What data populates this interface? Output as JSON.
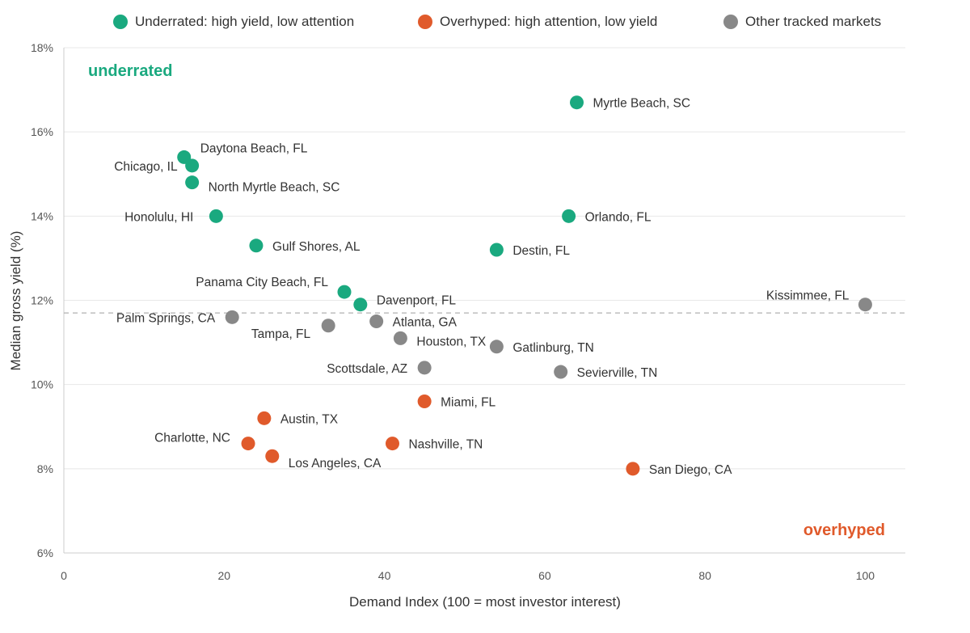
{
  "legend": {
    "underrated": "Underrated: high yield, low attention",
    "overhyped": "Overhyped: high attention, low yield",
    "other": "Other tracked markets"
  },
  "colors": {
    "underrated": "#1aa97f",
    "overhyped": "#e05a2b",
    "other": "#888888",
    "threshold": "#b0b0b0"
  },
  "chart_data": {
    "type": "scatter",
    "xlabel": "Demand Index (100 = most investor interest)",
    "ylabel": "Median gross yield (%)",
    "xlim": [
      0,
      105
    ],
    "ylim": [
      6,
      18
    ],
    "xticks": [
      0,
      20,
      40,
      60,
      80,
      100
    ],
    "yticks": [
      6,
      8,
      10,
      12,
      14,
      16,
      18
    ],
    "ytick_labels": [
      "6%",
      "8%",
      "10%",
      "12%",
      "14%",
      "16%",
      "18%"
    ],
    "grid": "horizontal",
    "threshold_y": 11.7,
    "quadrant_labels": {
      "top_left": "underrated",
      "bottom_right": "overhyped"
    },
    "series": [
      {
        "name": "Underrated: high yield, low attention",
        "key": "underrated",
        "points": [
          {
            "label": "Myrtle Beach, SC",
            "x": 64,
            "y": 16.7
          },
          {
            "label": "Daytona Beach, FL",
            "x": 15,
            "y": 15.4
          },
          {
            "label": "Chicago, IL",
            "x": 16,
            "y": 15.2
          },
          {
            "label": "North Myrtle Beach, SC",
            "x": 16,
            "y": 14.8
          },
          {
            "label": "Honolulu, HI",
            "x": 19,
            "y": 14.0
          },
          {
            "label": "Orlando, FL",
            "x": 63,
            "y": 14.0
          },
          {
            "label": "Gulf Shores, AL",
            "x": 24,
            "y": 13.3
          },
          {
            "label": "Destin, FL",
            "x": 54,
            "y": 13.2
          },
          {
            "label": "Panama City Beach, FL",
            "x": 35,
            "y": 12.2
          },
          {
            "label": "Davenport, FL",
            "x": 37,
            "y": 11.9
          }
        ]
      },
      {
        "name": "Other tracked markets",
        "key": "other",
        "points": [
          {
            "label": "Kissimmee, FL",
            "x": 100,
            "y": 11.9
          },
          {
            "label": "Palm Springs, CA",
            "x": 21,
            "y": 11.6
          },
          {
            "label": "Atlanta, GA",
            "x": 39,
            "y": 11.5
          },
          {
            "label": "Tampa, FL",
            "x": 33,
            "y": 11.4
          },
          {
            "label": "Houston, TX",
            "x": 42,
            "y": 11.1
          },
          {
            "label": "Gatlinburg, TN",
            "x": 54,
            "y": 10.9
          },
          {
            "label": "Scottsdale, AZ",
            "x": 45,
            "y": 10.4
          },
          {
            "label": "Sevierville, TN",
            "x": 62,
            "y": 10.3
          }
        ]
      },
      {
        "name": "Overhyped: high attention, low yield",
        "key": "overhyped",
        "points": [
          {
            "label": "Miami, FL",
            "x": 45,
            "y": 9.6
          },
          {
            "label": "Austin, TX",
            "x": 25,
            "y": 9.2
          },
          {
            "label": "Charlotte, NC",
            "x": 23,
            "y": 8.6
          },
          {
            "label": "Nashville, TN",
            "x": 41,
            "y": 8.6
          },
          {
            "label": "Los Angeles, CA",
            "x": 26,
            "y": 8.3
          },
          {
            "label": "San Diego, CA",
            "x": 71,
            "y": 8.0
          }
        ]
      }
    ]
  }
}
